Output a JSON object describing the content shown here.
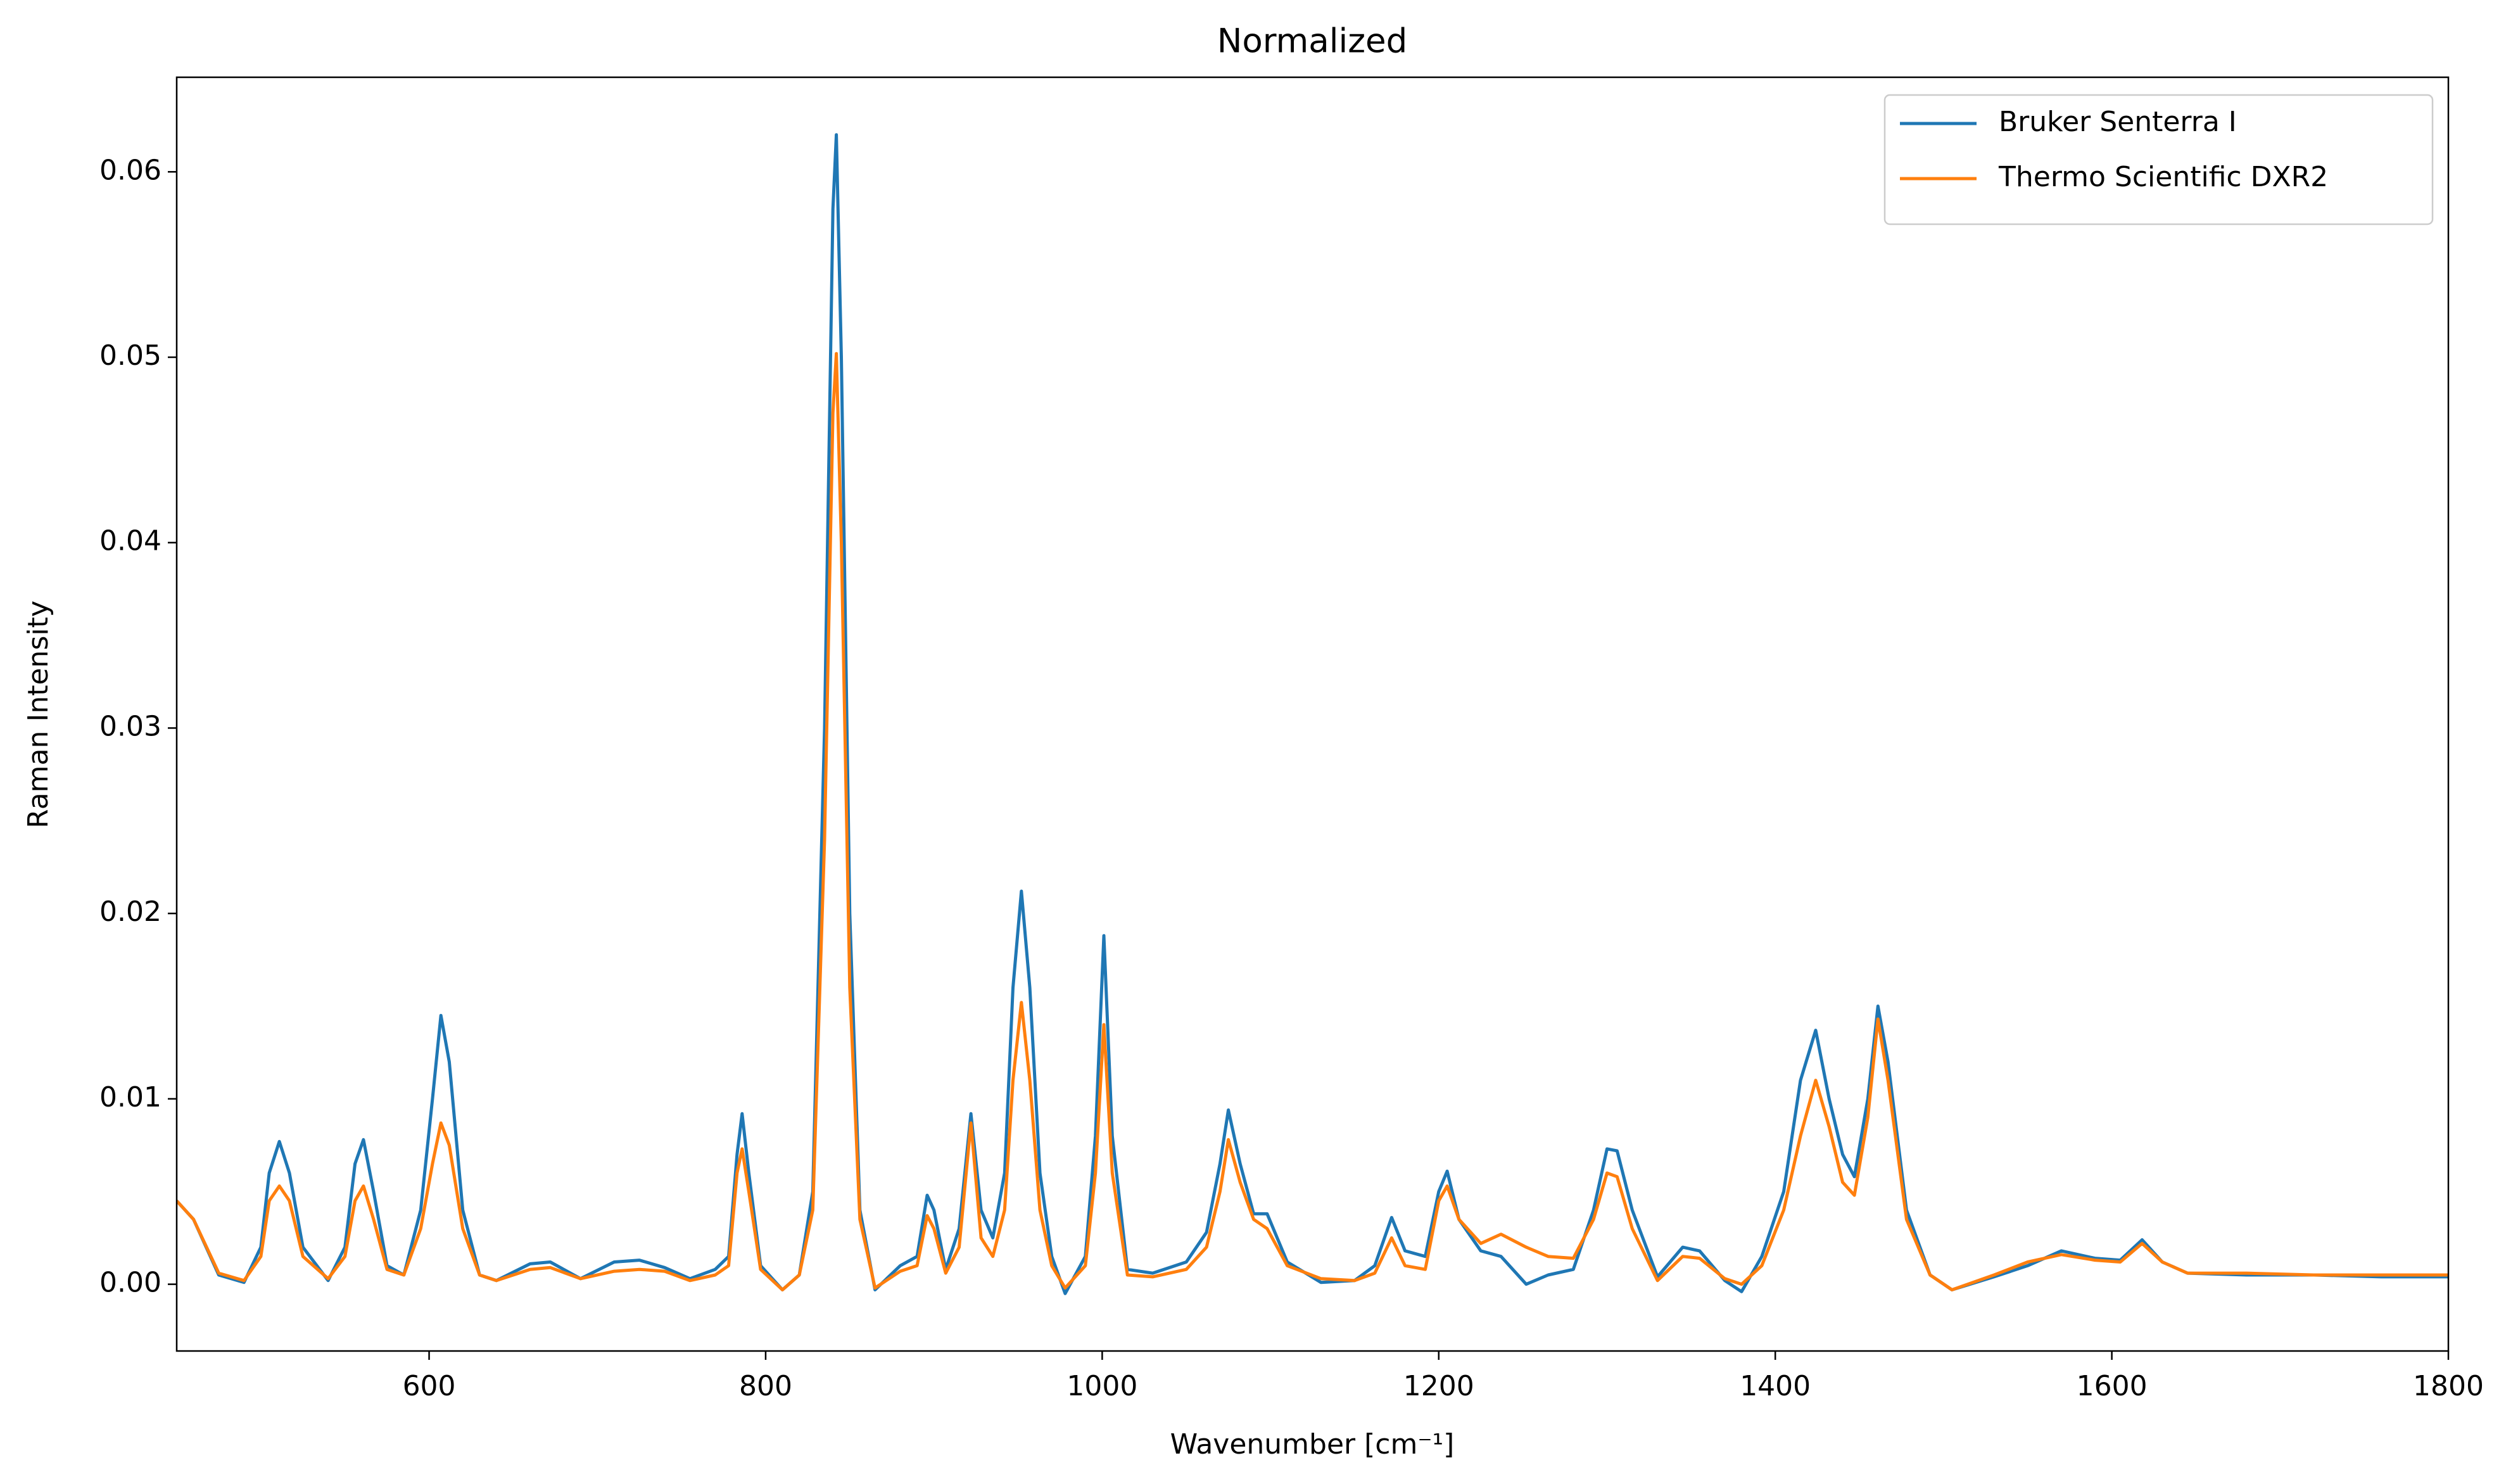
{
  "chart_data": {
    "type": "line",
    "title": "Normalized",
    "xlabel": "Wavenumber [cm⁻¹]",
    "ylabel": "Raman Intensity",
    "x": [
      450,
      460,
      475,
      490,
      500,
      505,
      511,
      517,
      525,
      540,
      550,
      556,
      561,
      567,
      575,
      585,
      595,
      602,
      607,
      612,
      620,
      630,
      640,
      660,
      672,
      690,
      710,
      725,
      740,
      755,
      770,
      778,
      783,
      786,
      790,
      797,
      810,
      820,
      828,
      835,
      840,
      842,
      845,
      850,
      856,
      865,
      880,
      890,
      896,
      900,
      907,
      915,
      922,
      928,
      935,
      942,
      947,
      952,
      957,
      963,
      970,
      978,
      990,
      996,
      1001,
      1006,
      1015,
      1030,
      1050,
      1062,
      1070,
      1075,
      1082,
      1090,
      1098,
      1110,
      1130,
      1150,
      1162,
      1172,
      1180,
      1192,
      1200,
      1205,
      1212,
      1225,
      1237,
      1252,
      1265,
      1280,
      1292,
      1300,
      1306,
      1315,
      1330,
      1345,
      1355,
      1370,
      1380,
      1392,
      1405,
      1415,
      1424,
      1432,
      1440,
      1447,
      1455,
      1461,
      1467,
      1478,
      1492,
      1505,
      1530,
      1550,
      1570,
      1590,
      1605,
      1618,
      1630,
      1645,
      1680,
      1720,
      1760,
      1800
    ],
    "series": [
      {
        "name": "Bruker Senterra I",
        "color": "#1f77b4",
        "values": [
          0.0045,
          0.0035,
          0.0005,
          0.0001,
          0.002,
          0.006,
          0.0077,
          0.006,
          0.002,
          0.0002,
          0.002,
          0.0065,
          0.0078,
          0.005,
          0.001,
          0.0005,
          0.004,
          0.01,
          0.0145,
          0.012,
          0.004,
          0.0005,
          0.0002,
          0.0011,
          0.0012,
          0.0003,
          0.0012,
          0.0013,
          0.0009,
          0.0003,
          0.0008,
          0.0015,
          0.007,
          0.0092,
          0.006,
          0.001,
          -0.0003,
          0.0005,
          0.005,
          0.03,
          0.058,
          0.062,
          0.05,
          0.02,
          0.004,
          -0.0003,
          0.001,
          0.0015,
          0.0048,
          0.004,
          0.0008,
          0.003,
          0.0092,
          0.004,
          0.0025,
          0.006,
          0.016,
          0.0212,
          0.016,
          0.006,
          0.0015,
          -0.0005,
          0.0015,
          0.008,
          0.0188,
          0.008,
          0.0008,
          0.0006,
          0.0012,
          0.0028,
          0.0065,
          0.0094,
          0.0065,
          0.0038,
          0.0038,
          0.0012,
          0.0001,
          0.0002,
          0.001,
          0.0036,
          0.0018,
          0.0015,
          0.005,
          0.0061,
          0.0035,
          0.0018,
          0.0015,
          0,
          0.0005,
          0.0008,
          0.004,
          0.0073,
          0.0072,
          0.004,
          0.0004,
          0.002,
          0.0018,
          0.0002,
          -0.0004,
          0.0015,
          0.005,
          0.011,
          0.0137,
          0.01,
          0.007,
          0.0058,
          0.01,
          0.015,
          0.012,
          0.004,
          0.0005,
          -0.0003,
          0.0004,
          0.001,
          0.0018,
          0.0014,
          0.0013,
          0.0024,
          0.0012,
          0.0006,
          0.0005,
          0.0005,
          0.0004,
          0.0004
        ]
      },
      {
        "name": "Thermo Scientific DXR2",
        "color": "#ff7f0e",
        "values": [
          0.0045,
          0.0035,
          0.0006,
          0.0002,
          0.0015,
          0.0045,
          0.0053,
          0.0045,
          0.0015,
          0.0003,
          0.0015,
          0.0045,
          0.0053,
          0.0035,
          0.0008,
          0.0005,
          0.003,
          0.0065,
          0.0087,
          0.0075,
          0.003,
          0.0005,
          0.0002,
          0.0008,
          0.0009,
          0.0003,
          0.0007,
          0.0008,
          0.0007,
          0.0002,
          0.0005,
          0.001,
          0.006,
          0.0073,
          0.005,
          0.0008,
          -0.0003,
          0.0005,
          0.004,
          0.024,
          0.047,
          0.0502,
          0.04,
          0.016,
          0.0035,
          -0.0002,
          0.0007,
          0.001,
          0.0037,
          0.003,
          0.0006,
          0.002,
          0.0087,
          0.0025,
          0.0015,
          0.004,
          0.011,
          0.0152,
          0.011,
          0.004,
          0.001,
          -0.0002,
          0.001,
          0.006,
          0.014,
          0.006,
          0.0005,
          0.0004,
          0.0008,
          0.002,
          0.005,
          0.0078,
          0.0055,
          0.0035,
          0.003,
          0.001,
          0.0003,
          0.0002,
          0.0006,
          0.0025,
          0.001,
          0.0008,
          0.0045,
          0.0053,
          0.0035,
          0.0022,
          0.0027,
          0.002,
          0.0015,
          0.0014,
          0.0035,
          0.006,
          0.0058,
          0.003,
          0.0002,
          0.0015,
          0.0014,
          0.0003,
          0,
          0.001,
          0.004,
          0.008,
          0.011,
          0.0085,
          0.0055,
          0.0048,
          0.009,
          0.0143,
          0.011,
          0.0035,
          0.0005,
          -0.0003,
          0.0005,
          0.0012,
          0.0016,
          0.0013,
          0.0012,
          0.0022,
          0.0012,
          0.0006,
          0.0006,
          0.0005,
          0.0005,
          0.0005
        ]
      }
    ],
    "xlim": [
      450,
      1800
    ],
    "ylim": [
      -0.0036,
      0.0651
    ],
    "xticks": [
      600,
      800,
      1000,
      1200,
      1400,
      1600,
      1800
    ],
    "yticks": [
      {
        "value": 0,
        "label": "0.00"
      },
      {
        "value": 0.01,
        "label": "0.01"
      },
      {
        "value": 0.02,
        "label": "0.02"
      },
      {
        "value": 0.03,
        "label": "0.03"
      },
      {
        "value": 0.04,
        "label": "0.04"
      },
      {
        "value": 0.05,
        "label": "0.05"
      },
      {
        "value": 0.06,
        "label": "0.06"
      }
    ],
    "legend": "upper right",
    "grid": false
  }
}
